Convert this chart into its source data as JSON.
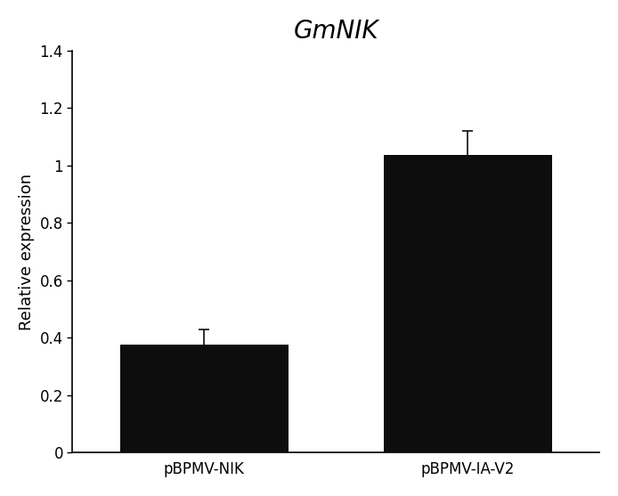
{
  "categories": [
    "pBPMV-NIK",
    "pBPMV-IA-V2"
  ],
  "values": [
    0.375,
    1.035
  ],
  "errors": [
    0.055,
    0.085
  ],
  "bar_color": "#0d0d0d",
  "title": "GmNIK",
  "title_style": "italic",
  "ylabel": "Relative expression",
  "ylim": [
    0,
    1.4
  ],
  "yticks": [
    0,
    0.2,
    0.4,
    0.6,
    0.8,
    1.0,
    1.2,
    1.4
  ],
  "yticklabels": [
    "0",
    "0.2",
    "0.4",
    "0.6",
    "0.8",
    "1",
    "1.2",
    "1.4"
  ],
  "bar_width": 0.32,
  "x_positions": [
    0.25,
    0.75
  ],
  "xlim": [
    0.0,
    1.0
  ],
  "background_color": "#ffffff",
  "title_fontsize": 20,
  "label_fontsize": 13,
  "tick_fontsize": 12,
  "capsize": 4,
  "error_linewidth": 1.2
}
